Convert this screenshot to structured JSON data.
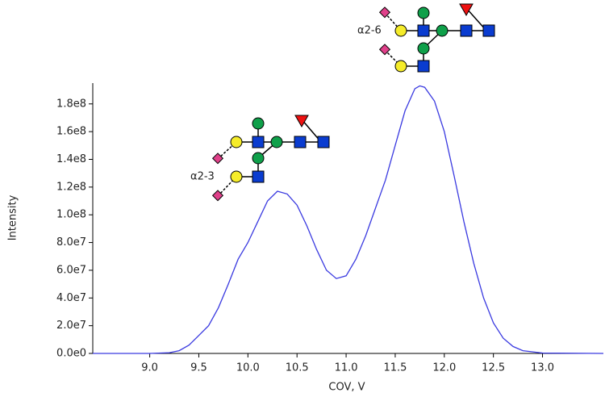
{
  "chart_data": {
    "type": "line",
    "x_label": "COV, V",
    "y_label": "Intensity",
    "annotations": [
      "α2-3",
      "α2-6"
    ],
    "xlim": [
      8.42,
      13.62
    ],
    "ylim": [
      0,
      195000000
    ],
    "xticks": [
      {
        "value": 9,
        "label": "9.0"
      },
      {
        "value": 9.5,
        "label": "9.5"
      },
      {
        "value": 10,
        "label": "10.0"
      },
      {
        "value": 10.5,
        "label": "10.5"
      },
      {
        "value": 11,
        "label": "11.0"
      },
      {
        "value": 11.5,
        "label": "11.5"
      },
      {
        "value": 12,
        "label": "12.0"
      },
      {
        "value": 12.5,
        "label": "12.5"
      },
      {
        "value": 13,
        "label": "13.0"
      }
    ],
    "yticks": [
      {
        "value": 0,
        "label": "0.0e0"
      },
      {
        "value": 20000000,
        "label": "2.0e7"
      },
      {
        "value": 40000000,
        "label": "4.0e7"
      },
      {
        "value": 60000000,
        "label": "6.0e7"
      },
      {
        "value": 80000000,
        "label": "8.0e7"
      },
      {
        "value": 100000000,
        "label": "1.0e8"
      },
      {
        "value": 120000000,
        "label": "1.2e8"
      },
      {
        "value": 140000000,
        "label": "1.4e8"
      },
      {
        "value": 160000000,
        "label": "1.6e8"
      },
      {
        "value": 180000000,
        "label": "1.8e8"
      }
    ],
    "x": [
      8.42,
      9.0,
      9.2,
      9.3,
      9.4,
      9.5,
      9.6,
      9.7,
      9.8,
      9.9,
      10.0,
      10.1,
      10.2,
      10.3,
      10.4,
      10.5,
      10.6,
      10.7,
      10.8,
      10.9,
      11.0,
      11.1,
      11.2,
      11.3,
      11.4,
      11.5,
      11.6,
      11.7,
      11.75,
      11.8,
      11.9,
      12.0,
      12.1,
      12.2,
      12.3,
      12.4,
      12.5,
      12.6,
      12.7,
      12.8,
      13.0,
      13.62
    ],
    "series": [
      {
        "name": "Intensity",
        "color": "#3a3ae0",
        "values": [
          0,
          0,
          500000,
          2000000,
          6000000,
          13000000,
          20000000,
          33000000,
          50000000,
          68000000,
          80000000,
          95000000,
          110000000,
          117000000,
          115000000,
          107000000,
          92000000,
          75000000,
          60000000,
          54000000,
          56000000,
          68000000,
          85000000,
          105000000,
          125000000,
          150000000,
          175000000,
          191000000,
          193000000,
          192000000,
          182000000,
          160000000,
          128000000,
          95000000,
          65000000,
          40000000,
          22000000,
          11000000,
          5000000,
          2000000,
          300000,
          0
        ]
      }
    ]
  }
}
